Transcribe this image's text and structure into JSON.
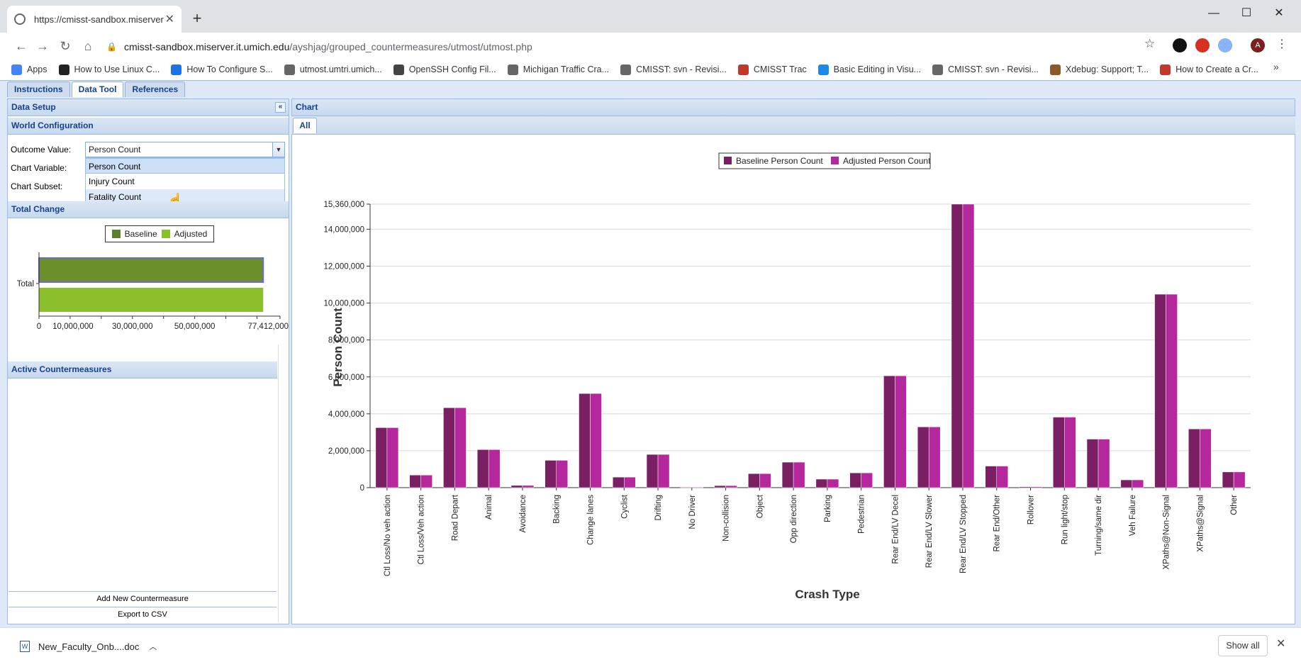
{
  "browser": {
    "tab_title": "https://cmisst-sandbox.miserver",
    "url_host": "cmisst-sandbox.miserver.it.umich.edu",
    "url_path": "/ayshjag/grouped_countermeasures/utmost/utmost.php",
    "bookmarks": [
      {
        "label": "Apps",
        "icon": "apps-grid-icon",
        "color": "#4285f4"
      },
      {
        "label": "How to Use Linux C...",
        "icon": "htg-icon",
        "color": "#222222"
      },
      {
        "label": "How To Configure S...",
        "icon": "digitalocean-icon",
        "color": "#1a73e8"
      },
      {
        "label": "utmost.umtri.umich...",
        "icon": "globe-icon",
        "color": "#666666"
      },
      {
        "label": "OpenSSH Config Fil...",
        "icon": "openssh-icon",
        "color": "#444444"
      },
      {
        "label": "Michigan Traffic Cra...",
        "icon": "globe-icon",
        "color": "#666666"
      },
      {
        "label": "CMISST: svn - Revisi...",
        "icon": "globe-icon",
        "color": "#666666"
      },
      {
        "label": "CMISST Trac",
        "icon": "trac-paw-icon",
        "color": "#c0392b"
      },
      {
        "label": "Basic Editing in Visu...",
        "icon": "vscode-icon",
        "color": "#1e88e5"
      },
      {
        "label": "CMISST: svn - Revisi...",
        "icon": "globe-icon",
        "color": "#666666"
      },
      {
        "label": "Xdebug: Support; T...",
        "icon": "xdebug-icon",
        "color": "#8b5a2b"
      },
      {
        "label": "How to Create a Cr...",
        "icon": "bookmark-page-icon",
        "color": "#c0392b"
      }
    ]
  },
  "app": {
    "tabs": [
      "Instructions",
      "Data Tool",
      "References"
    ],
    "active_tab": "Data Tool",
    "data_setup": {
      "title": "Data Setup",
      "world_config_title": "World Configuration",
      "outcome_label": "Outcome Value:",
      "outcome_value": "Person Count",
      "chart_variable_label": "Chart Variable:",
      "chart_subset_label": "Chart Subset:",
      "dropdown_options": [
        "Person Count",
        "Injury Count",
        "Fatality Count"
      ],
      "dropdown_hovered": "Fatality Count"
    },
    "total_change": {
      "title": "Total Change",
      "legend": [
        "Baseline",
        "Adjusted"
      ],
      "category": "Total",
      "baseline_color": "#6b8f2b",
      "adjusted_color": "#8bbf2e",
      "tick_labels": [
        "0",
        "10,000,000",
        "30,000,000",
        "50,000,000",
        "77,412,000"
      ]
    },
    "active_countermeasures": {
      "title": "Active Countermeasures",
      "add_button": "Add New Countermeasure",
      "export_button": "Export to CSV"
    },
    "chart_panel": {
      "title": "Chart",
      "tab": "All"
    }
  },
  "downloads": {
    "file": "New_Faculty_Onb....doc",
    "show_all": "Show all"
  },
  "chart_data": [
    {
      "type": "bar",
      "title": "",
      "xlabel": "Crash Type",
      "ylabel": "Person Count",
      "ylim": [
        0,
        15360000
      ],
      "ytick_labels": [
        "0",
        "2,000,000",
        "4,000,000",
        "6,000,000",
        "8,000,000",
        "10,000,000",
        "12,000,000",
        "14,000,000",
        "15,360,000"
      ],
      "yticks": [
        0,
        2000000,
        4000000,
        6000000,
        8000000,
        10000000,
        12000000,
        14000000,
        15360000
      ],
      "legend_position": "top-center",
      "categories": [
        "Ctl Loss/No veh action",
        "Ctl Loss/Veh action",
        "Road Depart",
        "Animal",
        "Avoidance",
        "Backing",
        "Change lanes",
        "Cyclist",
        "Drifting",
        "No Driver",
        "Non-collision",
        "Object",
        "Opp direction",
        "Parking",
        "Pedestrian",
        "Rear End/LV Decel",
        "Rear End/LV Slower",
        "Rear End/LV Stopped",
        "Rear End/Other",
        "Rollover",
        "Run light/stop",
        "Turning/same dir",
        "Veh Failure",
        "XPaths@Non-Signal",
        "XPaths@Signal",
        "Other"
      ],
      "series": [
        {
          "name": "Baseline Person Count",
          "color": "#7a1f63",
          "values": [
            3250000,
            680000,
            4330000,
            2060000,
            120000,
            1480000,
            5100000,
            570000,
            1800000,
            30000,
            110000,
            760000,
            1380000,
            460000,
            800000,
            6060000,
            3290000,
            15360000,
            1170000,
            50000,
            3820000,
            2630000,
            420000,
            10480000,
            3180000,
            850000
          ]
        },
        {
          "name": "Adjusted Person Count",
          "color": "#b5279c",
          "values": [
            3250000,
            680000,
            4330000,
            2060000,
            120000,
            1480000,
            5100000,
            570000,
            1800000,
            30000,
            110000,
            760000,
            1380000,
            460000,
            800000,
            6060000,
            3290000,
            15360000,
            1170000,
            50000,
            3820000,
            2630000,
            420000,
            10480000,
            3180000,
            850000
          ]
        }
      ]
    },
    {
      "type": "bar",
      "title": "",
      "orientation": "horizontal",
      "categories": [
        "Total"
      ],
      "xlim": [
        0,
        77412000
      ],
      "series": [
        {
          "name": "Baseline",
          "values": [
            72000000
          ]
        },
        {
          "name": "Adjusted",
          "values": [
            72000000
          ]
        }
      ]
    }
  ]
}
